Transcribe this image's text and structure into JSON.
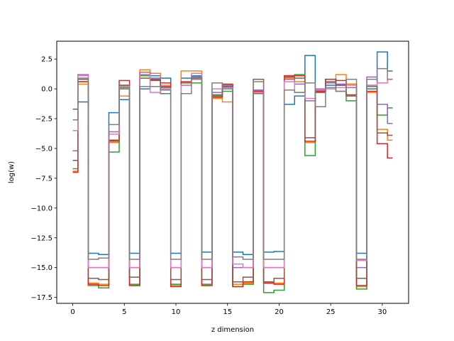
{
  "chart_data": {
    "type": "line",
    "drawstyle": "steps-mid",
    "xlabel": "z dimension",
    "ylabel": "log(w)",
    "xlim": [
      -1.55,
      32.55
    ],
    "ylim": [
      -18.0,
      4.0
    ],
    "xticks": [
      0,
      5,
      10,
      15,
      20,
      25,
      30
    ],
    "xtick_labels": [
      "0",
      "5",
      "10",
      "15",
      "20",
      "25",
      "30"
    ],
    "yticks": [
      2.5,
      0.0,
      -2.5,
      -5.0,
      -7.5,
      -10.0,
      -12.5,
      -15.0,
      -17.5
    ],
    "ytick_labels": [
      "2.5",
      "0.0",
      "−2.5",
      "−5.0",
      "−7.5",
      "−10.0",
      "−12.5",
      "−15.0",
      "−17.5"
    ],
    "grid": false,
    "x": [
      0,
      1,
      2,
      3,
      4,
      5,
      6,
      7,
      8,
      9,
      10,
      11,
      12,
      13,
      14,
      15,
      16,
      17,
      18,
      19,
      20,
      21,
      22,
      23,
      24,
      25,
      26,
      27,
      28,
      29,
      30,
      31
    ],
    "series": [
      {
        "color": "#1f77b4",
        "values": [
          -1.7,
          -1.1,
          -13.8,
          -13.9,
          -2.0,
          -0.9,
          -13.8,
          0.0,
          1.1,
          0.9,
          -13.8,
          0.9,
          1.1,
          -13.7,
          -0.6,
          0.3,
          -13.7,
          -13.9,
          -0.2,
          -13.7,
          -13.65,
          -1.3,
          -0.6,
          2.8,
          -0.2,
          0.3,
          0.3,
          0.4,
          -13.8,
          0.0,
          3.1,
          1.5
        ]
      },
      {
        "color": "#ff7f0e",
        "values": [
          -6.9,
          0.4,
          -16.3,
          -16.4,
          -4.5,
          -0.6,
          -16.5,
          1.6,
          1.3,
          0.3,
          -16.5,
          1.5,
          1.5,
          -16.5,
          -0.8,
          -1.1,
          -16.4,
          -16.3,
          -0.4,
          -16.3,
          -16.3,
          0.9,
          0.6,
          -4.5,
          -0.2,
          0.5,
          1.2,
          0.4,
          -16.6,
          -0.3,
          -3.4,
          -4.3
        ]
      },
      {
        "color": "#2ca02c",
        "values": [
          -6.7,
          0.6,
          -16.5,
          -16.7,
          -5.3,
          0.0,
          -16.4,
          1.1,
          0.8,
          -0.4,
          -16.4,
          0.3,
          0.5,
          -16.4,
          -0.6,
          -0.2,
          -16.6,
          -16.4,
          -0.4,
          -17.1,
          -16.9,
          1.1,
          1.2,
          -5.6,
          -0.2,
          0.8,
          -0.2,
          -1.0,
          -16.8,
          0.2,
          -2.2,
          -1.6
        ]
      },
      {
        "color": "#d62728",
        "values": [
          -7.0,
          0.6,
          -16.4,
          -16.5,
          -4.3,
          0.7,
          -16.5,
          1.2,
          0.8,
          0.5,
          -16.6,
          0.6,
          1.0,
          -16.5,
          -0.7,
          0.4,
          -16.6,
          -16.2,
          -0.2,
          -16.3,
          -16.4,
          1.1,
          1.1,
          -4.4,
          -0.2,
          0.8,
          0.7,
          -0.5,
          -16.5,
          -0.2,
          -4.6,
          -5.8
        ]
      },
      {
        "color": "#9467bd",
        "values": [
          -5.2,
          1.2,
          -15.0,
          -15.0,
          -3.6,
          0.3,
          -15.0,
          1.4,
          0.9,
          0.1,
          -15.0,
          0.5,
          0.8,
          -15.0,
          -0.3,
          0.1,
          -15.0,
          -15.0,
          -0.1,
          -15.0,
          -15.0,
          0.8,
          0.4,
          -1.0,
          0.0,
          0.5,
          0.4,
          0.1,
          -15.0,
          1.0,
          -1.3,
          -2.9
        ]
      },
      {
        "color": "#8c564b",
        "values": [
          -6.0,
          0.8,
          -15.9,
          -16.0,
          -4.4,
          0.3,
          -15.8,
          0.9,
          0.7,
          0.2,
          -16.0,
          0.5,
          0.9,
          -16.0,
          -0.5,
          0.2,
          -16.2,
          -15.8,
          0.8,
          -16.2,
          -15.9,
          1.0,
          0.9,
          -4.1,
          -0.3,
          0.6,
          0.3,
          -0.6,
          -15.9,
          0.3,
          -3.7,
          -3.9
        ]
      },
      {
        "color": "#e377c2",
        "values": [
          -3.5,
          1.1,
          -15.0,
          -15.0,
          -3.8,
          0.2,
          -15.0,
          1.2,
          -0.3,
          0.0,
          -15.0,
          0.3,
          1.3,
          -15.0,
          0.0,
          0.1,
          -14.7,
          -15.0,
          -0.3,
          -15.0,
          -15.0,
          0.6,
          -0.3,
          -0.8,
          -0.1,
          0.0,
          0.1,
          0.3,
          -14.4,
          0.3,
          0.5,
          0.8
        ]
      },
      {
        "color": "#7f7f7f",
        "values": [
          -2.6,
          0.9,
          -14.3,
          -14.2,
          -3.0,
          0.1,
          -14.3,
          0.2,
          0.2,
          -0.1,
          -14.3,
          -0.4,
          1.0,
          -14.3,
          0.5,
          0.0,
          -14.1,
          -14.3,
          0.6,
          -14.3,
          -14.3,
          -0.1,
          -0.3,
          0.5,
          -1.5,
          0.1,
          -0.2,
          0.8,
          -14.3,
          0.8,
          1.7,
          0.8
        ]
      }
    ]
  }
}
